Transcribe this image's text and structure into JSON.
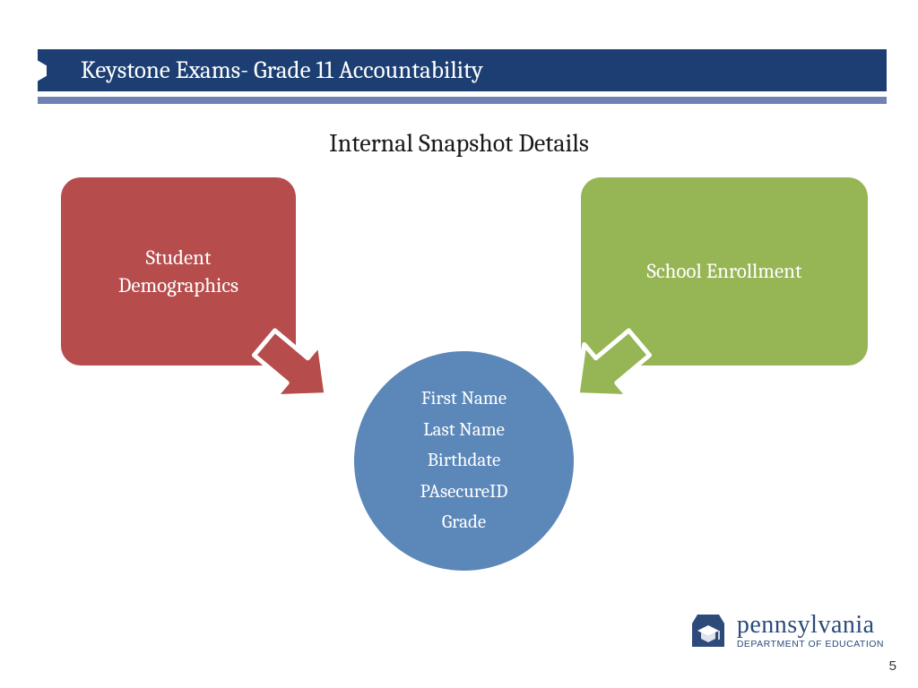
{
  "header": {
    "title": "Keystone Exams- Grade 11 Accountability",
    "bar_color": "#1c3e72",
    "underline_color": "#6f82b3",
    "title_fontsize": 27
  },
  "subtitle": {
    "text": "Internal Snapshot Details",
    "fontsize": 28,
    "color": "#1a1a1a"
  },
  "diagram": {
    "type": "infographic",
    "background_color": "#ffffff",
    "left_box": {
      "label": "Student\nDemographics",
      "fill": "#b64c4c",
      "text_color": "#ffffff",
      "radius": 22,
      "fontsize": 23
    },
    "right_box": {
      "label": "School Enrollment",
      "fill": "#96b554",
      "text_color": "#ffffff",
      "radius": 22,
      "fontsize": 23
    },
    "left_arrow": {
      "fill": "#b64c4c",
      "stroke": "#ffffff",
      "stroke_width": 5
    },
    "right_arrow": {
      "fill": "#96b554",
      "stroke": "#ffffff",
      "stroke_width": 5
    },
    "circle": {
      "fill": "#5b87b9",
      "text_color": "#ffffff",
      "fontsize": 21,
      "items": [
        "First Name",
        "Last Name",
        "Birthdate",
        "PAsecureID",
        "Grade"
      ]
    }
  },
  "logo": {
    "main": "pennsylvania",
    "sub": "DEPARTMENT OF EDUCATION",
    "color": "#2c4a7a"
  },
  "page_number": "5"
}
